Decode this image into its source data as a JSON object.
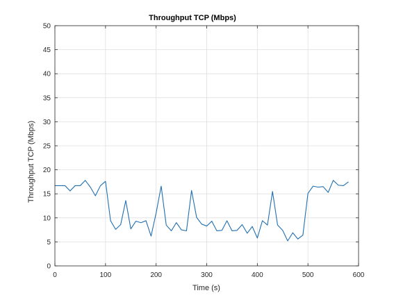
{
  "chart_data": {
    "type": "line",
    "title": "Throughput TCP (Mbps)",
    "xlabel": "Time (s)",
    "ylabel": "Throughput TCP (Mbps)",
    "xlim": [
      0,
      600
    ],
    "ylim": [
      0,
      50
    ],
    "xticks": [
      0,
      100,
      200,
      300,
      400,
      500,
      600
    ],
    "yticks": [
      0,
      5,
      10,
      15,
      20,
      25,
      30,
      35,
      40,
      45,
      50
    ],
    "grid": true,
    "series": [
      {
        "color": "#1f6fb2",
        "x": [
          0,
          10,
          20,
          30,
          40,
          50,
          60,
          70,
          80,
          90,
          100,
          110,
          120,
          130,
          140,
          150,
          160,
          170,
          180,
          190,
          200,
          210,
          220,
          230,
          240,
          250,
          260,
          270,
          280,
          290,
          300,
          310,
          320,
          330,
          340,
          350,
          360,
          370,
          380,
          390,
          400,
          410,
          420,
          430,
          440,
          450,
          460,
          470,
          480,
          490,
          500,
          510,
          520,
          530,
          540,
          550,
          560,
          570,
          580
        ],
        "y": [
          16.7,
          16.7,
          16.7,
          15.6,
          16.7,
          16.7,
          17.8,
          16.4,
          14.6,
          16.7,
          17.6,
          9.4,
          7.6,
          8.6,
          13.6,
          7.7,
          9.3,
          9.0,
          9.4,
          6.2,
          11.0,
          16.6,
          8.5,
          7.3,
          9.0,
          7.5,
          7.3,
          15.7,
          10.1,
          8.7,
          8.3,
          9.3,
          7.3,
          7.4,
          9.4,
          7.3,
          7.4,
          8.6,
          6.8,
          8.2,
          5.8,
          9.4,
          8.5,
          15.5,
          8.5,
          7.4,
          5.2,
          6.9,
          5.6,
          6.4,
          15.1,
          16.6,
          16.4,
          16.5,
          15.3,
          17.8,
          16.8,
          16.7,
          17.5
        ]
      }
    ]
  }
}
